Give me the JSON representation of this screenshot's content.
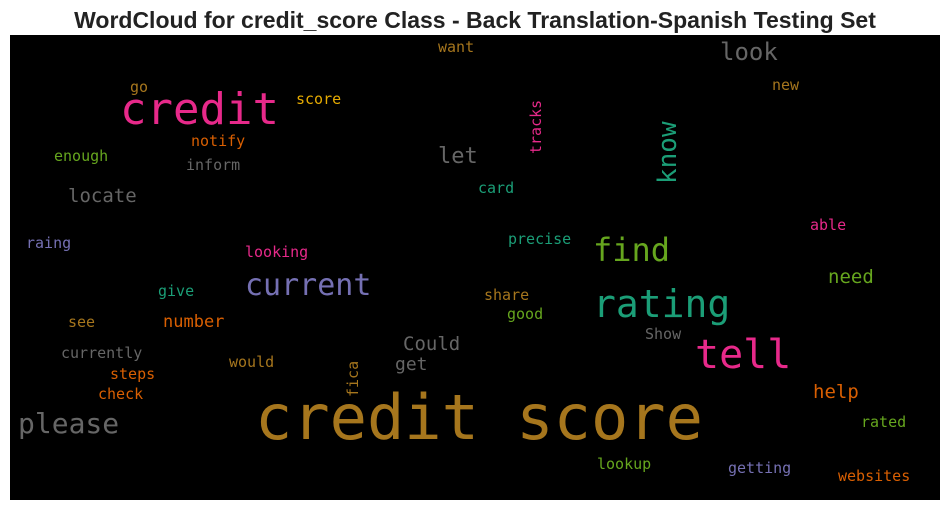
{
  "title": "WordCloud for credit_score Class - Back Translation-Spanish Testing Set",
  "words": [
    {
      "text": "credit score",
      "color": "#a6761d",
      "weight": 62
    },
    {
      "text": "credit",
      "color": "#e7298a",
      "weight": 44
    },
    {
      "text": "tell",
      "color": "#e7298a",
      "weight": 40
    },
    {
      "text": "rating",
      "color": "#1b9e77",
      "weight": 38
    },
    {
      "text": "find",
      "color": "#66a61e",
      "weight": 32
    },
    {
      "text": "current",
      "color": "#7570b3",
      "weight": 30
    },
    {
      "text": "please",
      "color": "#666666",
      "weight": 28
    },
    {
      "text": "know",
      "color": "#1b9e77",
      "weight": 26
    },
    {
      "text": "look",
      "color": "#666666",
      "weight": 24
    },
    {
      "text": "let",
      "color": "#666666",
      "weight": 22
    },
    {
      "text": "need",
      "color": "#66a61e",
      "weight": 19
    },
    {
      "text": "help",
      "color": "#d95f02",
      "weight": 19
    },
    {
      "text": "locate",
      "color": "#666666",
      "weight": 19
    },
    {
      "text": "Could",
      "color": "#666666",
      "weight": 19
    },
    {
      "text": "get",
      "color": "#666666",
      "weight": 18
    },
    {
      "text": "number",
      "color": "#d95f02",
      "weight": 17
    },
    {
      "text": "want",
      "color": "#a6761d",
      "weight": 15
    },
    {
      "text": "tracks",
      "color": "#e7298a",
      "weight": 15
    },
    {
      "text": "go",
      "color": "#a6761d",
      "weight": 15
    },
    {
      "text": "score",
      "color": "#e6ab02",
      "weight": 15
    },
    {
      "text": "new",
      "color": "#a6761d",
      "weight": 15
    },
    {
      "text": "notify",
      "color": "#d95f02",
      "weight": 15
    },
    {
      "text": "enough",
      "color": "#66a61e",
      "weight": 15
    },
    {
      "text": "inform",
      "color": "#666666",
      "weight": 15
    },
    {
      "text": "card",
      "color": "#1b9e77",
      "weight": 15
    },
    {
      "text": "able",
      "color": "#e7298a",
      "weight": 15
    },
    {
      "text": "precise",
      "color": "#1b9e77",
      "weight": 15
    },
    {
      "text": "raing",
      "color": "#7570b3",
      "weight": 15
    },
    {
      "text": "looking",
      "color": "#e7298a",
      "weight": 15
    },
    {
      "text": "give",
      "color": "#1b9e77",
      "weight": 15
    },
    {
      "text": "share",
      "color": "#a6761d",
      "weight": 15
    },
    {
      "text": "good",
      "color": "#66a61e",
      "weight": 15
    },
    {
      "text": "Show",
      "color": "#666666",
      "weight": 15
    },
    {
      "text": "see",
      "color": "#a6761d",
      "weight": 15
    },
    {
      "text": "fica",
      "color": "#a6761d",
      "weight": 15
    },
    {
      "text": "currently",
      "color": "#666666",
      "weight": 15
    },
    {
      "text": "would",
      "color": "#a6761d",
      "weight": 15
    },
    {
      "text": "steps",
      "color": "#d95f02",
      "weight": 15
    },
    {
      "text": "check",
      "color": "#d95f02",
      "weight": 15
    },
    {
      "text": "rated",
      "color": "#66a61e",
      "weight": 15
    },
    {
      "text": "lookup",
      "color": "#66a61e",
      "weight": 15
    },
    {
      "text": "getting",
      "color": "#7570b3",
      "weight": 15
    },
    {
      "text": "websites",
      "color": "#d95f02",
      "weight": 15
    }
  ]
}
